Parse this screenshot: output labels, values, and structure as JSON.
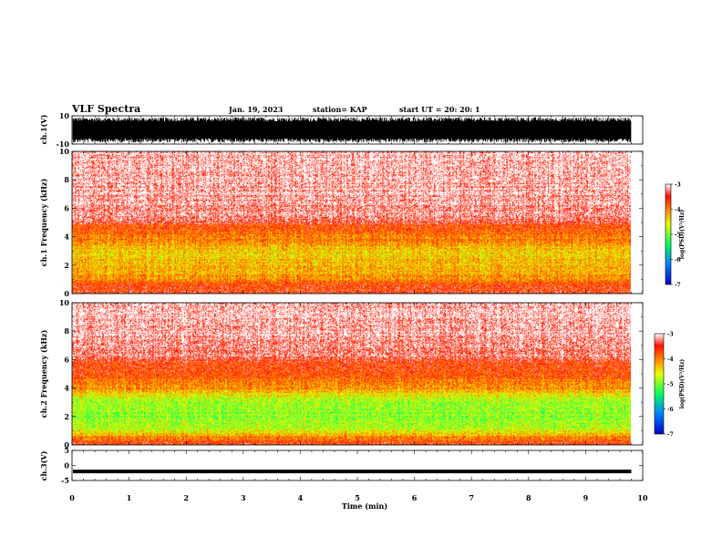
{
  "header": {
    "title": "VLF Spectra",
    "date": "Jan. 19, 2023",
    "station": "station= KAP",
    "start": "start  UT  =   20: 20: 1"
  },
  "chart_data": [
    {
      "type": "line",
      "panel": "ch1-waveform",
      "ylabel": "ch.1(V)",
      "ylim": [
        -10,
        10
      ],
      "yticks": [
        "10",
        "-10"
      ],
      "xlim": [
        0,
        10
      ],
      "description_of_values": "dense waveform spanning roughly -9 to 9 V from t=0 to ~9.8 min"
    },
    {
      "type": "heatmap",
      "panel": "ch1-spectrogram",
      "ylabel": "ch.1  Frequency  (kHz)",
      "ylim": [
        0,
        10
      ],
      "yticks": [
        "0",
        "2",
        "4",
        "6",
        "8",
        "10"
      ],
      "xlim": [
        0,
        10
      ],
      "data_end_min": 9.8,
      "profile_logpsd": [
        {
          "f": 0.0,
          "v": -3.6
        },
        {
          "f": 0.4,
          "v": -3.6
        },
        {
          "f": 1.0,
          "v": -4.1
        },
        {
          "f": 2.0,
          "v": -4.3
        },
        {
          "f": 3.0,
          "v": -4.4
        },
        {
          "f": 3.6,
          "v": -4.1
        },
        {
          "f": 4.2,
          "v": -3.9
        },
        {
          "f": 4.8,
          "v": -3.7
        },
        {
          "f": 5.0,
          "v": -3.35
        },
        {
          "f": 6.0,
          "v": -3.2
        },
        {
          "f": 8.0,
          "v": -3.1
        },
        {
          "f": 10.0,
          "v": -3.05
        }
      ],
      "colorbar": {
        "label": "log(PSD)(V²/Hz)",
        "ticks": [
          "-3",
          "-4",
          "-5",
          "-6",
          "-7"
        ],
        "range": [
          -7,
          -3
        ]
      }
    },
    {
      "type": "heatmap",
      "panel": "ch2-spectrogram",
      "ylabel": "ch.2  Frequency  (kHz)",
      "ylim": [
        0,
        10
      ],
      "yticks": [
        "0",
        "2",
        "4",
        "6",
        "8",
        "10"
      ],
      "xlim": [
        0,
        10
      ],
      "data_end_min": 9.8,
      "profile_logpsd": [
        {
          "f": 0.0,
          "v": -3.6
        },
        {
          "f": 0.4,
          "v": -3.9
        },
        {
          "f": 1.0,
          "v": -4.7
        },
        {
          "f": 2.0,
          "v": -4.9
        },
        {
          "f": 3.0,
          "v": -4.9
        },
        {
          "f": 3.6,
          "v": -4.4
        },
        {
          "f": 4.2,
          "v": -4.0
        },
        {
          "f": 5.0,
          "v": -3.75
        },
        {
          "f": 5.9,
          "v": -3.5
        },
        {
          "f": 6.3,
          "v": -3.25
        },
        {
          "f": 8.0,
          "v": -3.1
        },
        {
          "f": 10.0,
          "v": -3.05
        }
      ],
      "colorbar": {
        "label": "log(PSD)(V²/Hz)",
        "ticks": [
          "-3",
          "-4",
          "-5",
          "-6",
          "-7"
        ],
        "range": [
          -7,
          -3
        ]
      }
    },
    {
      "type": "line",
      "panel": "ch3-waveform",
      "ylabel": "ch.3(V)",
      "ylim": [
        -5,
        5
      ],
      "yticks": [
        "5",
        "0",
        "-5"
      ],
      "xlim": [
        0,
        10
      ],
      "description_of_values": "near-constant thick band at about -2 V from t=0 to ~9.8 min"
    }
  ],
  "xaxis": {
    "label": "Time  (min)",
    "ticks": [
      "0",
      "1",
      "2",
      "3",
      "4",
      "5",
      "6",
      "7",
      "8",
      "9",
      "10"
    ]
  }
}
